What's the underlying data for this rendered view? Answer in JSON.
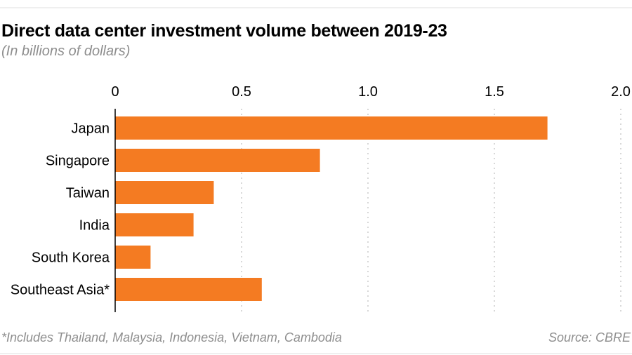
{
  "header": {
    "title": "Direct data center investment volume between 2019-23",
    "subtitle": "(In billions of dollars)"
  },
  "footer": {
    "note": "*Includes Thailand, Malaysia, Indonesia, Vietnam, Cambodia",
    "source": "Source: CBRE"
  },
  "colors": {
    "bar": "#f47b22",
    "grid": "#bdbdbd",
    "axis": "#000000"
  },
  "chart_data": {
    "type": "bar",
    "orientation": "horizontal",
    "title": "Direct data center investment volume between 2019-23",
    "subtitle": "(In billions of dollars)",
    "xlabel": "",
    "ylabel": "",
    "categories": [
      "Japan",
      "Singapore",
      "Taiwan",
      "India",
      "South Korea",
      "Southeast Asia*"
    ],
    "values": [
      1.71,
      0.81,
      0.39,
      0.31,
      0.14,
      0.58
    ],
    "xlim": [
      0,
      2.0
    ],
    "xticks": [
      0,
      0.5,
      1.0,
      1.5,
      2.0
    ],
    "xtick_labels": [
      "0",
      "0.5",
      "1.0",
      "1.5",
      "2.0"
    ],
    "tick_position": "top",
    "grid": true,
    "grid_style": "dotted vertical",
    "legend": "none",
    "footnote": "*Includes Thailand, Malaysia, Indonesia, Vietnam, Cambodia",
    "source": "Source: CBRE"
  }
}
